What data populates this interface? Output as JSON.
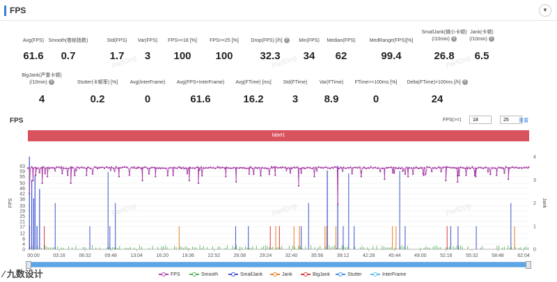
{
  "header": {
    "title": "FPS"
  },
  "stats_row1": [
    {
      "label": "Avg(FPS)",
      "value": "61.6"
    },
    {
      "label": "Smooth(卷帧指数)",
      "value": "0.7"
    },
    {
      "label": "Std(FPS)",
      "value": "1.7"
    },
    {
      "label": "Var(FPS)",
      "value": "3"
    },
    {
      "label": "FPS>=18 [%]",
      "value": "100"
    },
    {
      "label": "FPS>=25 [%]",
      "value": "100"
    },
    {
      "label": "Drop(FPS) [/h]",
      "value": "32.3",
      "help": true
    },
    {
      "label": "Min(FPS)",
      "value": "34"
    },
    {
      "label": "Median(FPS)",
      "value": "62"
    },
    {
      "label": "MedRange(FPS)[%]",
      "value": "99.4"
    },
    {
      "label": "SmallJank(微小卡顿)",
      "label2": "(/10min)",
      "value": "26.8",
      "help": true
    },
    {
      "label": "Jank(卡顿)",
      "label2": "(/10min)",
      "value": "6.5",
      "help": true
    }
  ],
  "stats_row2": [
    {
      "label": "BigJank(严重卡顿)",
      "label2": "(/10min)",
      "value": "4",
      "help": true
    },
    {
      "label": "Stutter(卡顿率) [%]",
      "value": "0.2"
    },
    {
      "label": "Avg(InterFrame)",
      "value": "0"
    },
    {
      "label": "Avg(FPS+InterFrame)",
      "value": "61.6"
    },
    {
      "label": "Avg(FTime) [ms]",
      "value": "16.2"
    },
    {
      "label": "Std(FTime)",
      "value": "3"
    },
    {
      "label": "Var(FTime)",
      "value": "8.9"
    },
    {
      "label": "FTime>=100ms [%]",
      "value": "0"
    },
    {
      "label": "Delta(FTime)>100ms [/h]",
      "value": "24",
      "help": true
    }
  ],
  "chart_title": "FPS",
  "fps_threshold": {
    "label": "FPS(>=)",
    "low": "18",
    "high": "25",
    "reset": "重置"
  },
  "label_bar": "label1",
  "watermark": "PerfDog",
  "logo": "∕ 九数设计",
  "chart_data": {
    "type": "line",
    "title": "FPS",
    "ylabel": "FPS",
    "y2label": "Jank",
    "ylim": [
      0,
      70
    ],
    "y2lim": [
      0,
      4
    ],
    "yticks": [
      0,
      4,
      8,
      12,
      17,
      21,
      25,
      29,
      33,
      38,
      42,
      46,
      50,
      55,
      59,
      63
    ],
    "y2ticks": [
      0,
      1,
      2,
      3,
      4
    ],
    "xlabels": [
      "00:00",
      "03:16",
      "06:32",
      "09:48",
      "13:04",
      "16:20",
      "19:36",
      "22:52",
      "26:08",
      "29:24",
      "32:40",
      "35:56",
      "39:12",
      "42:28",
      "45:44",
      "49:00",
      "52:16",
      "55:32",
      "58:48",
      "62:04"
    ],
    "duration_sec": 3850,
    "fps_baseline": 61.6,
    "fps_min": 34,
    "fps_dips": [
      [
        12,
        42
      ],
      [
        40,
        52
      ],
      [
        60,
        56
      ],
      [
        110,
        50
      ],
      [
        150,
        55
      ],
      [
        330,
        50
      ],
      [
        450,
        56
      ],
      [
        700,
        55
      ],
      [
        880,
        52
      ],
      [
        980,
        55
      ],
      [
        1240,
        52
      ],
      [
        1310,
        50
      ],
      [
        1520,
        55
      ],
      [
        1600,
        51
      ],
      [
        1700,
        57
      ],
      [
        1900,
        56
      ],
      [
        2080,
        48
      ],
      [
        2200,
        55
      ],
      [
        2380,
        34
      ],
      [
        2560,
        55
      ],
      [
        2740,
        53
      ],
      [
        2920,
        55
      ],
      [
        3040,
        56
      ],
      [
        3210,
        52
      ],
      [
        3300,
        51
      ],
      [
        3440,
        55
      ],
      [
        3600,
        56
      ],
      [
        3690,
        53
      ]
    ],
    "series": [
      {
        "name": "FPS",
        "color": "#a63da5"
      },
      {
        "name": "Smooth",
        "color": "#4caf50"
      },
      {
        "name": "SmallJank",
        "color": "#3a4fcf"
      },
      {
        "name": "Jank",
        "color": "#e67e22"
      },
      {
        "name": "BigJank",
        "color": "#d93535"
      },
      {
        "name": "Stutter",
        "color": "#3a8ee6"
      },
      {
        "name": "InterFrame",
        "color": "#56b4e9"
      }
    ]
  },
  "legend": [
    "FPS",
    "Smooth",
    "SmallJank",
    "Jank",
    "BigJank",
    "Stutter",
    "InterFrame"
  ]
}
